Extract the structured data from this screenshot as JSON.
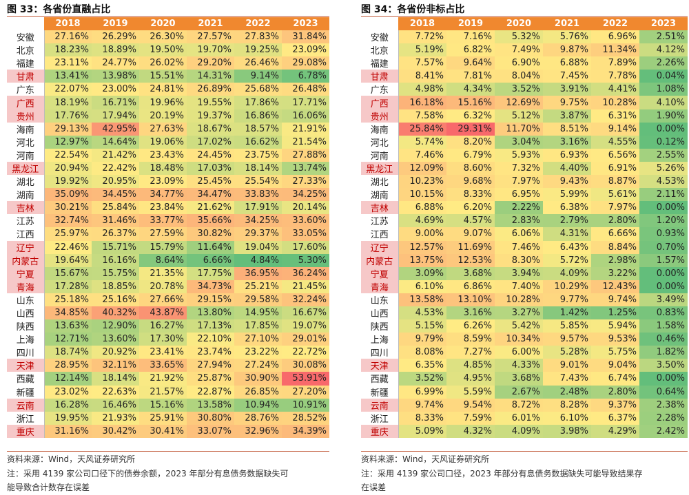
{
  "left": {
    "title": "图 33：各省份直融占比",
    "years": [
      "2018",
      "2019",
      "2020",
      "2021",
      "2022",
      "2023"
    ],
    "rows": [
      {
        "p": "安徽",
        "hl": false,
        "v": [
          "27.16%",
          "26.29%",
          "26.30%",
          "27.57%",
          "27.83%",
          "31.84%"
        ]
      },
      {
        "p": "北京",
        "hl": false,
        "v": [
          "18.23%",
          "18.89%",
          "19.50%",
          "19.70%",
          "19.25%",
          "23.09%"
        ]
      },
      {
        "p": "福建",
        "hl": false,
        "v": [
          "23.11%",
          "24.77%",
          "26.02%",
          "29.20%",
          "26.46%",
          "29.08%"
        ]
      },
      {
        "p": "甘肃",
        "hl": true,
        "v": [
          "13.41%",
          "13.98%",
          "15.51%",
          "14.31%",
          "9.14%",
          "6.78%"
        ]
      },
      {
        "p": "广东",
        "hl": false,
        "v": [
          "22.07%",
          "23.00%",
          "24.81%",
          "26.89%",
          "25.68%",
          "26.48%"
        ]
      },
      {
        "p": "广西",
        "hl": true,
        "v": [
          "18.19%",
          "16.71%",
          "19.96%",
          "19.55%",
          "17.86%",
          "17.71%"
        ]
      },
      {
        "p": "贵州",
        "hl": true,
        "v": [
          "17.76%",
          "17.94%",
          "20.19%",
          "19.37%",
          "16.86%",
          "16.06%"
        ]
      },
      {
        "p": "海南",
        "hl": false,
        "v": [
          "29.13%",
          "42.95%",
          "27.63%",
          "18.67%",
          "18.57%",
          "21.91%"
        ]
      },
      {
        "p": "河北",
        "hl": false,
        "v": [
          "12.97%",
          "14.64%",
          "19.06%",
          "17.02%",
          "16.62%",
          "21.54%"
        ]
      },
      {
        "p": "河南",
        "hl": false,
        "v": [
          "22.54%",
          "21.42%",
          "23.43%",
          "24.45%",
          "23.75%",
          "27.88%"
        ]
      },
      {
        "p": "黑龙江",
        "hl": true,
        "v": [
          "20.94%",
          "22.42%",
          "18.48%",
          "17.03%",
          "18.14%",
          "13.74%"
        ]
      },
      {
        "p": "湖北",
        "hl": false,
        "v": [
          "19.92%",
          "20.95%",
          "23.09%",
          "25.45%",
          "25.54%",
          "27.33%"
        ]
      },
      {
        "p": "湖南",
        "hl": false,
        "v": [
          "35.09%",
          "34.45%",
          "34.77%",
          "34.47%",
          "33.83%",
          "34.25%"
        ]
      },
      {
        "p": "吉林",
        "hl": true,
        "v": [
          "30.21%",
          "25.84%",
          "23.84%",
          "21.62%",
          "17.91%",
          "20.14%"
        ]
      },
      {
        "p": "江苏",
        "hl": false,
        "v": [
          "32.74%",
          "31.46%",
          "33.77%",
          "35.66%",
          "34.25%",
          "33.60%"
        ]
      },
      {
        "p": "江西",
        "hl": false,
        "v": [
          "25.97%",
          "26.37%",
          "27.59%",
          "30.82%",
          "29.37%",
          "33.05%"
        ]
      },
      {
        "p": "辽宁",
        "hl": true,
        "v": [
          "22.46%",
          "15.71%",
          "15.79%",
          "11.64%",
          "19.04%",
          "17.60%"
        ]
      },
      {
        "p": "内蒙古",
        "hl": true,
        "v": [
          "19.64%",
          "16.16%",
          "8.64%",
          "6.66%",
          "4.84%",
          "5.30%"
        ]
      },
      {
        "p": "宁夏",
        "hl": true,
        "v": [
          "15.67%",
          "15.75%",
          "21.35%",
          "17.75%",
          "36.95%",
          "36.24%"
        ]
      },
      {
        "p": "青海",
        "hl": true,
        "v": [
          "17.28%",
          "18.85%",
          "20.78%",
          "34.73%",
          "25.21%",
          "21.45%"
        ]
      },
      {
        "p": "山东",
        "hl": false,
        "v": [
          "25.18%",
          "25.16%",
          "27.66%",
          "29.15%",
          "29.58%",
          "32.24%"
        ]
      },
      {
        "p": "山西",
        "hl": false,
        "v": [
          "34.85%",
          "40.32%",
          "43.87%",
          "13.80%",
          "14.95%",
          "16.67%"
        ]
      },
      {
        "p": "陕西",
        "hl": false,
        "v": [
          "13.63%",
          "12.90%",
          "16.27%",
          "17.13%",
          "17.85%",
          "19.07%"
        ]
      },
      {
        "p": "上海",
        "hl": false,
        "v": [
          "12.71%",
          "13.60%",
          "17.30%",
          "22.10%",
          "27.10%",
          "29.01%"
        ]
      },
      {
        "p": "四川",
        "hl": false,
        "v": [
          "18.74%",
          "20.92%",
          "23.41%",
          "23.74%",
          "23.22%",
          "22.72%"
        ]
      },
      {
        "p": "天津",
        "hl": true,
        "v": [
          "28.95%",
          "32.11%",
          "33.65%",
          "27.94%",
          "27.24%",
          "30.08%"
        ]
      },
      {
        "p": "西藏",
        "hl": false,
        "v": [
          "12.14%",
          "18.14%",
          "21.92%",
          "25.87%",
          "30.90%",
          "53.91%"
        ]
      },
      {
        "p": "新疆",
        "hl": false,
        "v": [
          "23.02%",
          "22.63%",
          "21.57%",
          "22.87%",
          "26.85%",
          "27.20%"
        ]
      },
      {
        "p": "云南",
        "hl": true,
        "v": [
          "16.28%",
          "16.46%",
          "15.16%",
          "13.58%",
          "10.94%",
          "10.91%"
        ]
      },
      {
        "p": "浙江",
        "hl": false,
        "v": [
          "19.95%",
          "21.93%",
          "25.91%",
          "30.80%",
          "28.76%",
          "28.52%"
        ]
      },
      {
        "p": "重庆",
        "hl": true,
        "v": [
          "31.16%",
          "30.42%",
          "30.41%",
          "33.07%",
          "32.96%",
          "34.39%"
        ]
      }
    ],
    "source": "资料来源：Wind，天风证券研究所",
    "note1": "注：采用 4139 家公司口径下的债券余额，2023 年部分有息债务数据缺失可",
    "note2": "能导致合计数存在误差"
  },
  "right": {
    "title": "图 34：各省份非标占比",
    "years": [
      "2018",
      "2019",
      "2020",
      "2021",
      "2022",
      "2023"
    ],
    "rows": [
      {
        "p": "安徽",
        "hl": false,
        "v": [
          "7.72%",
          "7.16%",
          "5.32%",
          "5.76%",
          "6.96%",
          "2.51%"
        ]
      },
      {
        "p": "北京",
        "hl": false,
        "v": [
          "5.19%",
          "6.82%",
          "7.49%",
          "9.87%",
          "11.34%",
          "4.12%"
        ]
      },
      {
        "p": "福建",
        "hl": false,
        "v": [
          "7.57%",
          "9.64%",
          "6.90%",
          "6.88%",
          "7.89%",
          "2.26%"
        ]
      },
      {
        "p": "甘肃",
        "hl": true,
        "v": [
          "8.41%",
          "7.81%",
          "8.04%",
          "7.45%",
          "7.78%",
          "0.04%"
        ]
      },
      {
        "p": "广东",
        "hl": false,
        "v": [
          "4.98%",
          "4.34%",
          "3.52%",
          "3.91%",
          "4.41%",
          "1.08%"
        ]
      },
      {
        "p": "广西",
        "hl": true,
        "v": [
          "16.18%",
          "15.16%",
          "12.69%",
          "9.75%",
          "10.28%",
          "4.10%"
        ]
      },
      {
        "p": "贵州",
        "hl": true,
        "v": [
          "7.58%",
          "6.32%",
          "5.12%",
          "3.87%",
          "6.31%",
          "1.90%"
        ]
      },
      {
        "p": "海南",
        "hl": false,
        "v": [
          "25.84%",
          "29.31%",
          "11.70%",
          "8.51%",
          "9.14%",
          "0.00%"
        ]
      },
      {
        "p": "河北",
        "hl": false,
        "v": [
          "5.74%",
          "8.20%",
          "3.04%",
          "3.16%",
          "4.55%",
          "0.12%"
        ]
      },
      {
        "p": "河南",
        "hl": false,
        "v": [
          "7.46%",
          "6.79%",
          "5.93%",
          "6.93%",
          "6.56%",
          "2.55%"
        ]
      },
      {
        "p": "黑龙江",
        "hl": true,
        "v": [
          "12.09%",
          "8.60%",
          "7.32%",
          "4.40%",
          "6.91%",
          "5.26%"
        ]
      },
      {
        "p": "湖北",
        "hl": false,
        "v": [
          "10.23%",
          "9.68%",
          "7.97%",
          "9.43%",
          "8.87%",
          "4.53%"
        ]
      },
      {
        "p": "湖南",
        "hl": false,
        "v": [
          "10.15%",
          "8.33%",
          "6.95%",
          "5.99%",
          "5.61%",
          "2.11%"
        ]
      },
      {
        "p": "吉林",
        "hl": true,
        "v": [
          "6.88%",
          "6.20%",
          "2.22%",
          "6.38%",
          "7.97%",
          "0.00%"
        ]
      },
      {
        "p": "江苏",
        "hl": false,
        "v": [
          "4.69%",
          "4.57%",
          "2.83%",
          "2.79%",
          "2.80%",
          "1.20%"
        ]
      },
      {
        "p": "江西",
        "hl": false,
        "v": [
          "9.00%",
          "9.07%",
          "6.06%",
          "4.31%",
          "6.66%",
          "0.93%"
        ]
      },
      {
        "p": "辽宁",
        "hl": true,
        "v": [
          "12.57%",
          "11.69%",
          "7.46%",
          "6.43%",
          "8.84%",
          "0.70%"
        ]
      },
      {
        "p": "内蒙古",
        "hl": true,
        "v": [
          "13.75%",
          "12.53%",
          "8.30%",
          "5.72%",
          "2.98%",
          "1.57%"
        ]
      },
      {
        "p": "宁夏",
        "hl": true,
        "v": [
          "3.09%",
          "3.68%",
          "3.94%",
          "4.09%",
          "3.22%",
          "0.00%"
        ]
      },
      {
        "p": "青海",
        "hl": true,
        "v": [
          "6.10%",
          "6.86%",
          "7.40%",
          "10.29%",
          "12.43%",
          "0.00%"
        ]
      },
      {
        "p": "山东",
        "hl": false,
        "v": [
          "13.58%",
          "13.10%",
          "10.28%",
          "9.77%",
          "9.74%",
          "3.49%"
        ]
      },
      {
        "p": "山西",
        "hl": false,
        "v": [
          "4.53%",
          "3.16%",
          "3.27%",
          "1.42%",
          "1.25%",
          "0.83%"
        ]
      },
      {
        "p": "陕西",
        "hl": false,
        "v": [
          "5.15%",
          "6.26%",
          "5.42%",
          "5.85%",
          "5.94%",
          "1.58%"
        ]
      },
      {
        "p": "上海",
        "hl": false,
        "v": [
          "9.79%",
          "8.59%",
          "10.34%",
          "9.57%",
          "9.53%",
          "0.46%"
        ]
      },
      {
        "p": "四川",
        "hl": false,
        "v": [
          "8.08%",
          "7.27%",
          "6.00%",
          "5.28%",
          "5.75%",
          "1.82%"
        ]
      },
      {
        "p": "天津",
        "hl": true,
        "v": [
          "6.35%",
          "4.85%",
          "4.33%",
          "9.01%",
          "9.04%",
          "3.50%"
        ]
      },
      {
        "p": "西藏",
        "hl": false,
        "v": [
          "3.52%",
          "4.95%",
          "3.68%",
          "7.43%",
          "6.74%",
          "0.00%"
        ]
      },
      {
        "p": "新疆",
        "hl": false,
        "v": [
          "6.99%",
          "5.59%",
          "2.67%",
          "2.48%",
          "2.80%",
          "0.64%"
        ]
      },
      {
        "p": "云南",
        "hl": true,
        "v": [
          "9.74%",
          "9.54%",
          "8.72%",
          "8.28%",
          "9.37%",
          "2.38%"
        ]
      },
      {
        "p": "浙江",
        "hl": false,
        "v": [
          "8.33%",
          "7.59%",
          "6.01%",
          "6.10%",
          "6.37%",
          "2.28%"
        ]
      },
      {
        "p": "重庆",
        "hl": true,
        "v": [
          "5.09%",
          "4.32%",
          "4.09%",
          "3.98%",
          "4.29%",
          "2.42%"
        ]
      }
    ],
    "source": "资料来源：Wind，天风证券研究所",
    "note1": "注：采用 4139 家公司口径，2023 年部分有息债务数据缺失可能导致结果存",
    "note2": "在误差"
  },
  "colors": {
    "header": "#f0882f",
    "low": "#63be7b",
    "mid": "#ffeb84",
    "high": "#f8696b",
    "highlight_bg": "#f6c8c8",
    "highlight_text": "#c00000"
  }
}
